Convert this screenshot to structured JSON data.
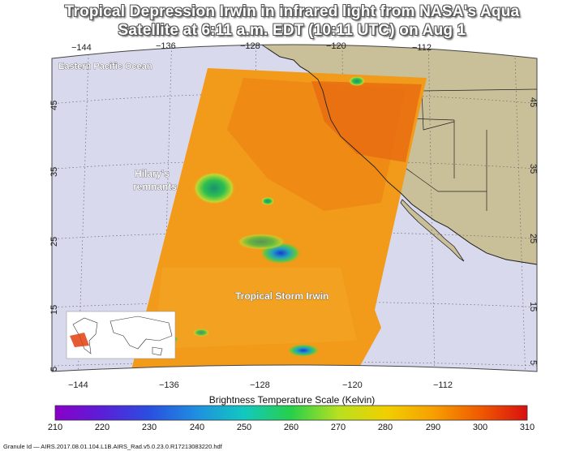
{
  "title_line1": "Tropical Depression Irwin in infrared light from NASA's Aqua",
  "title_line2": "Satellite at 6:11 a.m. EDT (10:11 UTC) on Aug 1",
  "labels": {
    "ocean": "Eastern Pacific Ocean",
    "hilary_line1": "Hilary's",
    "hilary_line2": "remnants",
    "irwin": "Tropical Storm Irwin"
  },
  "longitude_ticks": [
    "−144",
    "−136",
    "−128",
    "−120",
    "−112"
  ],
  "latitude_ticks": [
    "45",
    "35",
    "25",
    "15",
    "5"
  ],
  "colorbar": {
    "title": "Brightness Temperature Scale (Kelvin)",
    "ticks": [
      "210",
      "220",
      "230",
      "240",
      "250",
      "260",
      "270",
      "280",
      "290",
      "300",
      "310"
    ],
    "colors": [
      "#8a00c8",
      "#5a1fd8",
      "#2a4fe0",
      "#1f8fe0",
      "#12c8c0",
      "#27d04a",
      "#b8e020",
      "#f0d000",
      "#f7a000",
      "#f05a00",
      "#d81010"
    ]
  },
  "granule": "Granule Id — AIRS.2017.08.01.104.L1B.AIRS_Rad.v5.0.23.0.R17213083220.hdf",
  "colors": {
    "ocean_bg": "#d9d9ee",
    "land": "#c9bf98",
    "swath_main": "#f29a1a"
  }
}
